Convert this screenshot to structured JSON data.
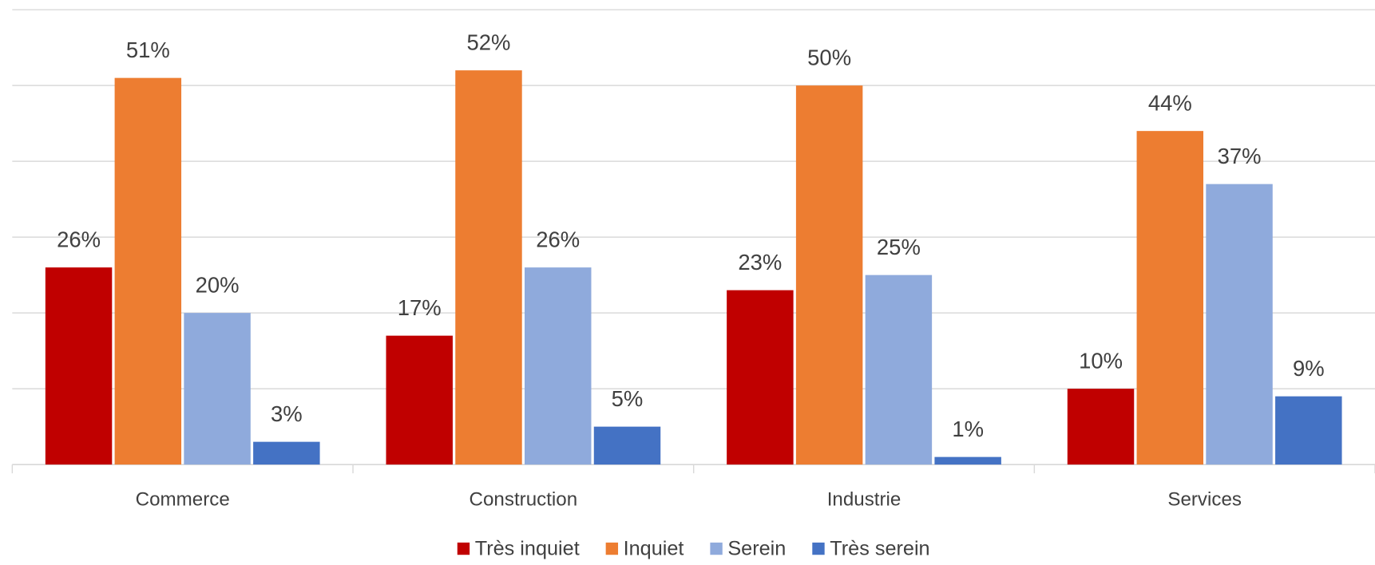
{
  "chart_data": {
    "type": "bar",
    "categories": [
      "Commerce",
      "Construction",
      "Industrie",
      "Services"
    ],
    "series": [
      {
        "name": "Très inquiet",
        "color": "#c00000",
        "values": [
          26,
          17,
          23,
          10
        ],
        "value_labels": [
          "26%",
          "17%",
          "23%",
          "10%"
        ]
      },
      {
        "name": "Inquiet",
        "color": "#ed7d31",
        "values": [
          51,
          52,
          50,
          44
        ],
        "value_labels": [
          "51%",
          "52%",
          "50%",
          "44%"
        ]
      },
      {
        "name": "Serein",
        "color": "#8faadc",
        "values": [
          20,
          26,
          25,
          37
        ],
        "value_labels": [
          "20%",
          "26%",
          "25%",
          "37%"
        ]
      },
      {
        "name": "Très serein",
        "color": "#4472c4",
        "values": [
          3,
          5,
          1,
          9
        ],
        "value_labels": [
          "3%",
          "5%",
          "1%",
          "9%"
        ]
      }
    ],
    "ylim": [
      0,
      60
    ],
    "yticks": [
      0,
      10,
      20,
      30,
      40,
      50,
      60
    ],
    "grid": true,
    "legend": "bottom"
  }
}
